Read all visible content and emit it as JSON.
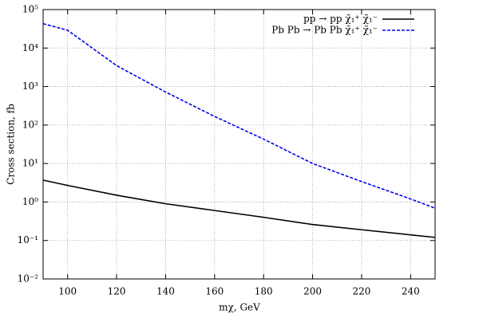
{
  "chart_data": {
    "type": "line",
    "x_label": "mχ, GeV",
    "y_label": "Cross section, fb",
    "log_y": true,
    "grid": true,
    "legend": "top-right",
    "x": [
      90,
      100,
      120,
      140,
      160,
      180,
      200,
      220,
      240,
      250
    ],
    "series": [
      {
        "name": "pp → pp χ̃₁⁺ χ̃₁⁻",
        "color": "#000000",
        "dash": "solid",
        "values": [
          3.7,
          2.7,
          1.5,
          0.9,
          0.6,
          0.4,
          0.26,
          0.19,
          0.14,
          0.12
        ]
      },
      {
        "name": "Pb Pb → Pb Pb χ̃₁⁺ χ̃₁⁻",
        "color": "#0000ee",
        "dash": "dashed",
        "values": [
          43000,
          29000,
          3500,
          720,
          167,
          43,
          10,
          3.4,
          1.2,
          0.69
        ]
      }
    ],
    "xlim": [
      90,
      250
    ],
    "xticks": [
      100,
      120,
      140,
      160,
      180,
      200,
      220,
      240
    ],
    "ylim": [
      0.01,
      100000
    ],
    "yticks": [
      {
        "value": 0.01,
        "label": "10⁻²"
      },
      {
        "value": 0.1,
        "label": "10⁻¹"
      },
      {
        "value": 1,
        "label": "10⁰"
      },
      {
        "value": 10,
        "label": "10¹"
      },
      {
        "value": 100,
        "label": "10²"
      },
      {
        "value": 1000,
        "label": "10³"
      },
      {
        "value": 10000,
        "label": "10⁴"
      },
      {
        "value": 100000,
        "label": "10⁵"
      }
    ]
  }
}
